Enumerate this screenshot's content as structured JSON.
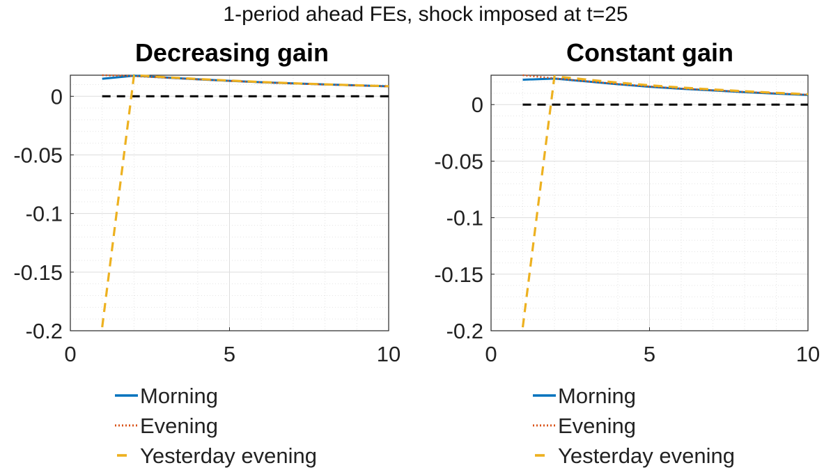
{
  "figure": {
    "suptitle": "1-period ahead FEs, shock imposed at t=25"
  },
  "colors": {
    "morning": "#0072BD",
    "evening": "#D95319",
    "yesterday_evening": "#EDB120",
    "zero_line": "#000000",
    "grid": "#dddddd"
  },
  "chart_data": [
    {
      "type": "line",
      "title": "Decreasing gain",
      "xlabel": "",
      "ylabel": "",
      "xlim": [
        0,
        10
      ],
      "ylim": [
        -0.2,
        0.018
      ],
      "xticks": [
        0,
        5,
        10
      ],
      "xtick_labels": [
        "0",
        "5",
        "10"
      ],
      "yticks": [
        0,
        -0.05,
        -0.1,
        -0.15,
        -0.2
      ],
      "ytick_labels": [
        "0",
        "-0.05",
        "-0.1",
        "-0.15",
        "-0.2"
      ],
      "grid": true,
      "minor_grid": true,
      "legend_placement": "below",
      "series": [
        {
          "name": "Morning",
          "style": "solid",
          "x": [
            1,
            2,
            3,
            4,
            5,
            6,
            7,
            8,
            9,
            10
          ],
          "y": [
            0.015,
            0.0175,
            0.016,
            0.0145,
            0.0132,
            0.012,
            0.011,
            0.0101,
            0.0093,
            0.0085
          ]
        },
        {
          "name": "Evening",
          "style": "dotted",
          "x": [
            1,
            2,
            3,
            4,
            5,
            6,
            7,
            8,
            9,
            10
          ],
          "y": [
            0.018,
            0.0172,
            0.0158,
            0.0144,
            0.0131,
            0.0119,
            0.0109,
            0.01,
            0.0092,
            0.0084
          ]
        },
        {
          "name": "Yesterday evening",
          "style": "dashed",
          "x": [
            1,
            2,
            3,
            4,
            5,
            6,
            7,
            8,
            9,
            10
          ],
          "y": [
            -0.197,
            0.018,
            0.0163,
            0.0148,
            0.0134,
            0.0122,
            0.0111,
            0.0102,
            0.0094,
            0.0086
          ]
        },
        {
          "name": "",
          "style": "zero",
          "x": [
            1,
            10
          ],
          "y": [
            0,
            0
          ]
        }
      ]
    },
    {
      "type": "line",
      "title": "Constant gain",
      "xlabel": "",
      "ylabel": "",
      "xlim": [
        0,
        10
      ],
      "ylim": [
        -0.2,
        0.026
      ],
      "xticks": [
        0,
        5,
        10
      ],
      "xtick_labels": [
        "0",
        "5",
        "10"
      ],
      "yticks": [
        0,
        -0.05,
        -0.1,
        -0.15,
        -0.2
      ],
      "ytick_labels": [
        "0",
        "-0.05",
        "-0.1",
        "-0.15",
        "-0.2"
      ],
      "grid": true,
      "minor_grid": true,
      "legend_placement": "below",
      "series": [
        {
          "name": "Morning",
          "style": "solid",
          "x": [
            1,
            2,
            3,
            4,
            5,
            6,
            7,
            8,
            9,
            10
          ],
          "y": [
            0.022,
            0.023,
            0.0205,
            0.018,
            0.0158,
            0.014,
            0.0125,
            0.011,
            0.0097,
            0.0085
          ]
        },
        {
          "name": "Evening",
          "style": "dotted",
          "x": [
            1,
            2,
            3,
            4,
            5,
            6,
            7,
            8,
            9,
            10
          ],
          "y": [
            0.026,
            0.0232,
            0.0207,
            0.0182,
            0.016,
            0.0142,
            0.0127,
            0.0112,
            0.0099,
            0.0087
          ]
        },
        {
          "name": "Yesterday evening",
          "style": "dashed",
          "x": [
            1,
            2,
            3,
            4,
            5,
            6,
            7,
            8,
            9,
            10
          ],
          "y": [
            -0.197,
            0.025,
            0.0222,
            0.0195,
            0.0171,
            0.0151,
            0.0134,
            0.0118,
            0.0104,
            0.0091
          ]
        },
        {
          "name": "",
          "style": "zero",
          "x": [
            1,
            10
          ],
          "y": [
            0,
            0
          ]
        }
      ]
    }
  ],
  "legend": {
    "items": [
      {
        "label": "Morning",
        "style": "solid"
      },
      {
        "label": "Evening",
        "style": "dotted"
      },
      {
        "label": "Yesterday evening",
        "style": "dashed"
      }
    ]
  }
}
